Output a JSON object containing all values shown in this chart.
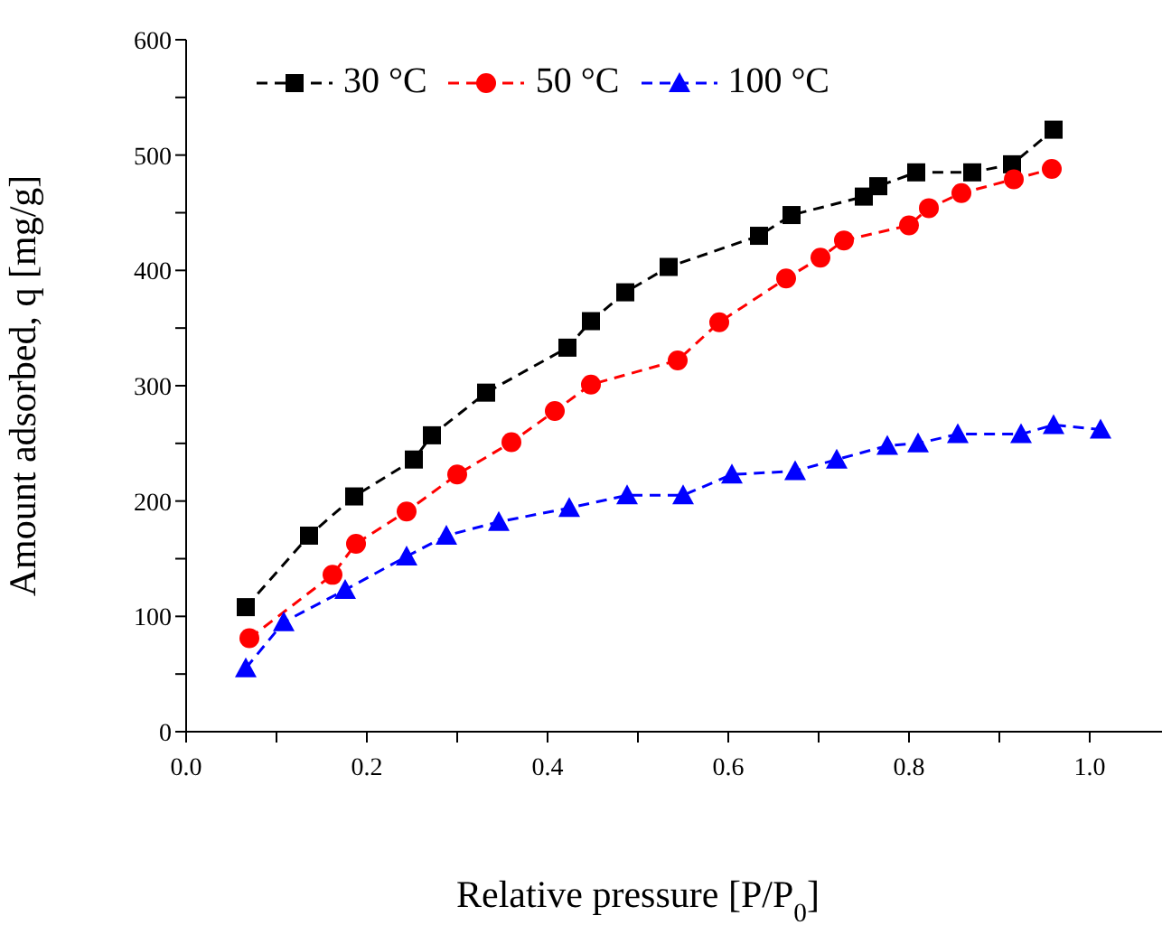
{
  "chart_data": {
    "type": "line",
    "xlabel": "Relative pressure [P/P$_{0}$]",
    "ylabel": "Amount adsorbed, q [mg/g]",
    "legend": "top left",
    "grid": false,
    "line_style": "dashed",
    "xlim": [
      0,
      1.08
    ],
    "xticks": [
      {
        "value": 0,
        "label": "0.0"
      },
      {
        "value": 0.1,
        "label": null
      },
      {
        "value": 0.2,
        "label": "0.2"
      },
      {
        "value": 0.3,
        "label": null
      },
      {
        "value": 0.4,
        "label": "0.4"
      },
      {
        "value": 0.5,
        "label": null
      },
      {
        "value": 0.6,
        "label": "0.6"
      },
      {
        "value": 0.7,
        "label": null
      },
      {
        "value": 0.8,
        "label": "0.8"
      },
      {
        "value": 0.9,
        "label": null
      },
      {
        "value": 1,
        "label": "1.0"
      }
    ],
    "ylim": [
      0,
      600
    ],
    "yticks": [
      0,
      {
        "value": 50,
        "label": null
      },
      100,
      {
        "value": 150,
        "label": null
      },
      200,
      {
        "value": 250,
        "label": null
      },
      300,
      {
        "value": 350,
        "label": null
      },
      400,
      {
        "value": 450,
        "label": null
      },
      500,
      {
        "value": 550,
        "label": null
      },
      600
    ],
    "series": [
      {
        "name": "30 °C",
        "color": "#000000",
        "marker": "square",
        "x": [
          0.066,
          0.136,
          0.186,
          0.252,
          0.272,
          0.332,
          0.422,
          0.448,
          0.486,
          0.534,
          0.634,
          0.67,
          0.75,
          0.766,
          0.808,
          0.87,
          0.914,
          0.96
        ],
        "values": [
          108,
          170,
          204,
          236,
          257,
          294,
          333,
          356,
          381,
          403,
          430,
          448,
          464,
          473,
          485,
          485,
          492,
          522
        ]
      },
      {
        "name": "50 °C",
        "color": "#ff0000",
        "marker": "circle",
        "x": [
          0.07,
          0.162,
          0.188,
          0.244,
          0.3,
          0.36,
          0.408,
          0.448,
          0.544,
          0.59,
          0.664,
          0.702,
          0.728,
          0.8,
          0.822,
          0.858,
          0.916,
          0.958
        ],
        "values": [
          81,
          136,
          163,
          191,
          223,
          251,
          278,
          301,
          322,
          355,
          393,
          411,
          426,
          439,
          454,
          467,
          479,
          488
        ]
      },
      {
        "name": "100 °C",
        "color": "#0000ff",
        "marker": "triangle",
        "x": [
          0.066,
          0.108,
          0.176,
          0.244,
          0.288,
          0.346,
          0.424,
          0.488,
          0.55,
          0.604,
          0.674,
          0.72,
          0.776,
          0.81,
          0.854,
          0.924,
          0.96,
          1.012
        ],
        "values": [
          55,
          95,
          123,
          152,
          170,
          182,
          194,
          205,
          205,
          223,
          226,
          236,
          248,
          250,
          258,
          258,
          266,
          262
        ]
      }
    ]
  }
}
